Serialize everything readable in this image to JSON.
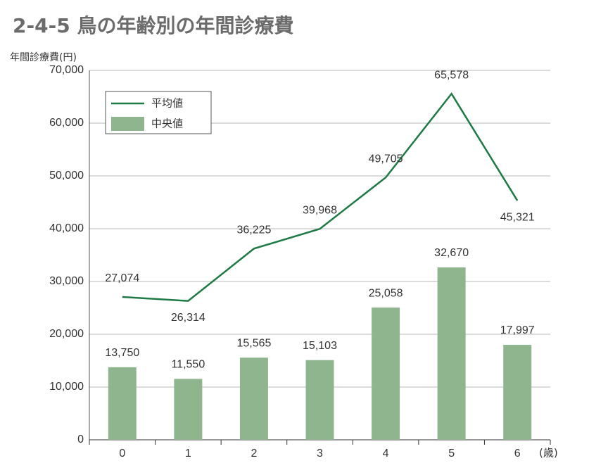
{
  "chart_data": {
    "type": "bar",
    "title": "2-4-5 鳥の年齢別の年間診療費",
    "y_axis_label": "年間診療費(円)",
    "x_axis_label": "(歳)",
    "categories": [
      "0",
      "1",
      "2",
      "3",
      "4",
      "5",
      "6"
    ],
    "series": [
      {
        "name": "平均値",
        "type": "line",
        "color": "#1e7a45",
        "values": [
          27074,
          26314,
          36225,
          39968,
          49705,
          65578,
          45321
        ],
        "value_labels": [
          "27,074",
          "26,314",
          "36,225",
          "39,968",
          "49,705",
          "65,578",
          "45,321"
        ]
      },
      {
        "name": "中央値",
        "type": "bar",
        "color": "#8fb58f",
        "values": [
          13750,
          11550,
          15565,
          15103,
          25058,
          32670,
          17997
        ],
        "value_labels": [
          "13,750",
          "11,550",
          "15,565",
          "15,103",
          "25,058",
          "32,670",
          "17,997"
        ]
      }
    ],
    "ylim": [
      0,
      70000
    ],
    "yticks": [
      0,
      {
        "value": 10000,
        "label": "10,000"
      },
      {
        "value": 20000,
        "label": "20,000"
      },
      {
        "value": 30000,
        "label": "30,000"
      },
      {
        "value": 40000,
        "label": "40,000"
      },
      {
        "value": 50000,
        "label": "50,000"
      },
      {
        "value": 60000,
        "label": "60,000"
      },
      {
        "value": 70000,
        "label": "70,000"
      }
    ],
    "grid": true
  }
}
